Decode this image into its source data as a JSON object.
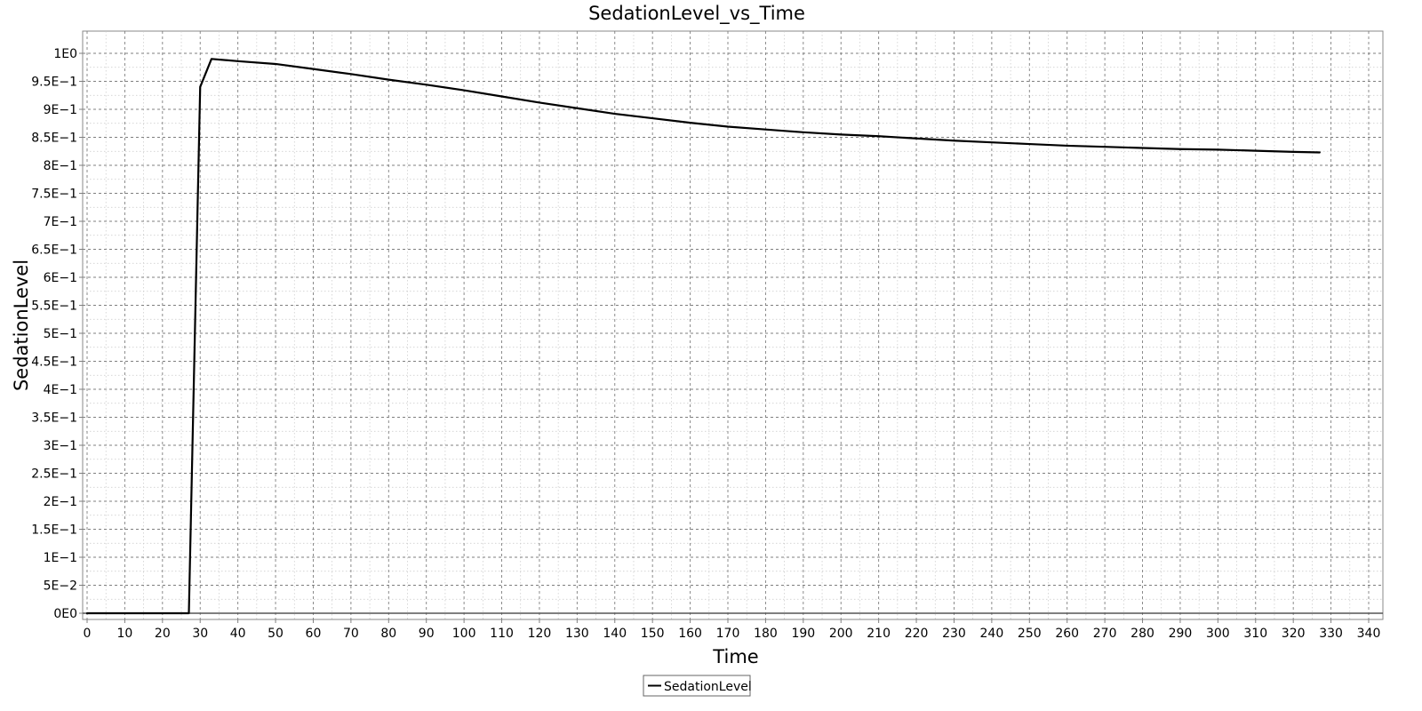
{
  "chart_data": {
    "type": "line",
    "title": "SedationLevel_vs_Time",
    "xlabel": "Time",
    "ylabel": "SedationLevel",
    "xlim": [
      0,
      340
    ],
    "ylim": [
      0,
      1
    ],
    "x_ticks": [
      0,
      10,
      20,
      30,
      40,
      50,
      60,
      70,
      80,
      90,
      100,
      110,
      120,
      130,
      140,
      150,
      160,
      170,
      180,
      190,
      200,
      210,
      220,
      230,
      240,
      250,
      260,
      270,
      280,
      290,
      300,
      310,
      320,
      330,
      340
    ],
    "y_ticks": [
      {
        "value": 0,
        "label": "0E0"
      },
      {
        "value": 0.05,
        "label": "5E−2"
      },
      {
        "value": 0.1,
        "label": "1E−1"
      },
      {
        "value": 0.15,
        "label": "1.5E−1"
      },
      {
        "value": 0.2,
        "label": "2E−1"
      },
      {
        "value": 0.25,
        "label": "2.5E−1"
      },
      {
        "value": 0.3,
        "label": "3E−1"
      },
      {
        "value": 0.35,
        "label": "3.5E−1"
      },
      {
        "value": 0.4,
        "label": "4E−1"
      },
      {
        "value": 0.45,
        "label": "4.5E−1"
      },
      {
        "value": 0.5,
        "label": "5E−1"
      },
      {
        "value": 0.55,
        "label": "5.5E−1"
      },
      {
        "value": 0.6,
        "label": "6E−1"
      },
      {
        "value": 0.65,
        "label": "6.5E−1"
      },
      {
        "value": 0.7,
        "label": "7E−1"
      },
      {
        "value": 0.75,
        "label": "7.5E−1"
      },
      {
        "value": 0.8,
        "label": "8E−1"
      },
      {
        "value": 0.85,
        "label": "8.5E−1"
      },
      {
        "value": 0.9,
        "label": "9E−1"
      },
      {
        "value": 0.95,
        "label": "9.5E−1"
      },
      {
        "value": 1,
        "label": "1E0"
      }
    ],
    "grid": true,
    "legend_position": "bottom-center",
    "series": [
      {
        "name": "SedationLevel",
        "color": "#000000",
        "points": [
          [
            0,
            0
          ],
          [
            10,
            0
          ],
          [
            20,
            0
          ],
          [
            27,
            0
          ],
          [
            30,
            0.94
          ],
          [
            33,
            0.99
          ],
          [
            40,
            0.986
          ],
          [
            50,
            0.981
          ],
          [
            60,
            0.972
          ],
          [
            70,
            0.963
          ],
          [
            80,
            0.953
          ],
          [
            90,
            0.944
          ],
          [
            100,
            0.934
          ],
          [
            110,
            0.923
          ],
          [
            120,
            0.912
          ],
          [
            130,
            0.902
          ],
          [
            140,
            0.892
          ],
          [
            150,
            0.884
          ],
          [
            160,
            0.876
          ],
          [
            170,
            0.869
          ],
          [
            180,
            0.864
          ],
          [
            190,
            0.859
          ],
          [
            200,
            0.855
          ],
          [
            210,
            0.852
          ],
          [
            220,
            0.848
          ],
          [
            230,
            0.844
          ],
          [
            240,
            0.841
          ],
          [
            250,
            0.838
          ],
          [
            260,
            0.835
          ],
          [
            270,
            0.833
          ],
          [
            280,
            0.831
          ],
          [
            290,
            0.829
          ],
          [
            300,
            0.828
          ],
          [
            310,
            0.826
          ],
          [
            320,
            0.824
          ],
          [
            327,
            0.823
          ]
        ]
      }
    ]
  }
}
